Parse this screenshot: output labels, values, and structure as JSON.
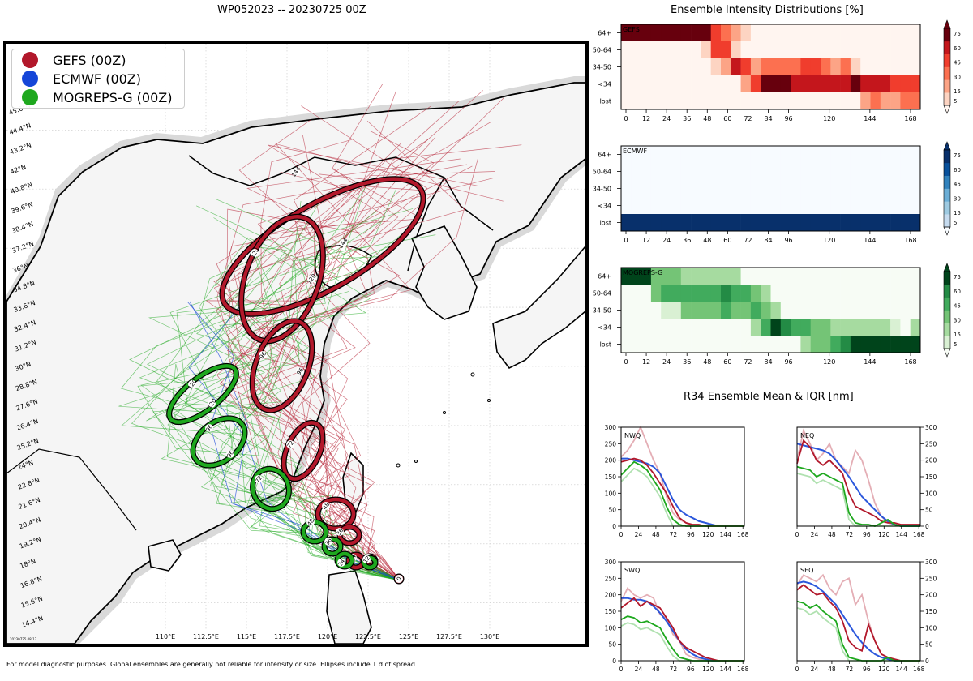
{
  "map": {
    "title": "WP052023 -- 20230725 00Z",
    "legend": [
      {
        "label": "GEFS (00Z)",
        "color": "#b2182b"
      },
      {
        "label": "ECMWF (00Z)",
        "color": "#1546d8"
      },
      {
        "label": "MOGREPS-G (00Z)",
        "color": "#1ea81e"
      }
    ],
    "lat_labels": [
      "14.4°N",
      "15.6°N",
      "16.8°N",
      "18°N",
      "19.2°N",
      "20.4°N",
      "21.6°N",
      "22.8°N",
      "24°N",
      "25.2°N",
      "26.4°N",
      "27.6°N",
      "28.8°N",
      "30°N",
      "31.2°N",
      "32.4°N",
      "33.6°N",
      "34.8°N",
      "36°N",
      "37.2°N",
      "38.4°N",
      "39.6°N",
      "40.8°N",
      "42°N",
      "43.2°N",
      "44.4°N",
      "45.6°N"
    ],
    "lon_labels": [
      "110°E",
      "112.5°E",
      "115°E",
      "117.5°E",
      "120°E",
      "122.5°E",
      "125°E",
      "127.5°E",
      "130°E"
    ],
    "stamp": "20230725 08:13",
    "ellipse_labels": {
      "gefs": [
        "144",
        "144",
        "120",
        "120",
        "96",
        "96",
        "72",
        "48",
        "36",
        "24",
        "12",
        "0"
      ],
      "mogreps": [
        "120",
        "120",
        "96",
        "96",
        "72",
        "48",
        "36",
        "24",
        "12"
      ]
    }
  },
  "footer": "For model diagnostic purposes. Global ensembles are generally not reliable for intensity or size. Ellipses include 1 σ of spread.",
  "intensity": {
    "title": "Ensemble Intensity Distributions [%]",
    "row_labels": [
      "64+",
      "50-64",
      "34-50",
      "<34",
      "lost"
    ],
    "x_ticks": [
      "0",
      "12",
      "24",
      "36",
      "48",
      "60",
      "72",
      "84",
      "96",
      "120",
      "144",
      "168"
    ],
    "x_tick_values": [
      0,
      12,
      24,
      36,
      48,
      60,
      72,
      84,
      96,
      120,
      144,
      168
    ],
    "cbar_ticks": [
      "5",
      "15",
      "30",
      "45",
      "60",
      "75"
    ],
    "cbar_tick_values": [
      5,
      15,
      30,
      45,
      60,
      75
    ],
    "panels": [
      {
        "name": "GEFS",
        "palette": [
          "#fff5f0",
          "#fdd4c2",
          "#fca486",
          "#fc7050",
          "#f03d2d",
          "#c4161c",
          "#67000d"
        ],
        "rows": [
          [
            75,
            75,
            75,
            75,
            75,
            75,
            75,
            75,
            75,
            45,
            30,
            15,
            5,
            0,
            0,
            0,
            0,
            0,
            0,
            0,
            0,
            0,
            0,
            0,
            0,
            0,
            0,
            0,
            0,
            0
          ],
          [
            0,
            0,
            0,
            0,
            0,
            0,
            0,
            0,
            5,
            45,
            45,
            5,
            0,
            0,
            0,
            0,
            0,
            0,
            0,
            0,
            0,
            0,
            0,
            0,
            0,
            0,
            0,
            0,
            0,
            0
          ],
          [
            0,
            0,
            0,
            0,
            0,
            0,
            0,
            0,
            0,
            5,
            15,
            60,
            45,
            15,
            30,
            30,
            30,
            30,
            45,
            45,
            30,
            15,
            30,
            5,
            0,
            0,
            0,
            0,
            0,
            0
          ],
          [
            0,
            0,
            0,
            0,
            0,
            0,
            0,
            0,
            0,
            0,
            0,
            0,
            15,
            45,
            75,
            75,
            75,
            60,
            60,
            60,
            60,
            60,
            60,
            75,
            60,
            60,
            60,
            45,
            45,
            45
          ],
          [
            0,
            0,
            0,
            0,
            0,
            0,
            0,
            0,
            0,
            0,
            0,
            0,
            0,
            0,
            0,
            0,
            0,
            0,
            0,
            0,
            0,
            0,
            0,
            0,
            15,
            30,
            15,
            15,
            30,
            30
          ]
        ]
      },
      {
        "name": "ECMWF",
        "palette": [
          "#f7fbff",
          "#c6dbef",
          "#9ecae1",
          "#6baed6",
          "#3182bd",
          "#08519c",
          "#08306b"
        ],
        "rows": [
          [
            0,
            0,
            0,
            0,
            0,
            0,
            0,
            0,
            0,
            0,
            0,
            0,
            0,
            0,
            0,
            0,
            0,
            0,
            0,
            0,
            0,
            0,
            0,
            0,
            0,
            0,
            0,
            0,
            0,
            0
          ],
          [
            0,
            0,
            0,
            0,
            0,
            0,
            0,
            0,
            0,
            0,
            0,
            0,
            0,
            0,
            0,
            0,
            0,
            0,
            0,
            0,
            0,
            0,
            0,
            0,
            0,
            0,
            0,
            0,
            0,
            0
          ],
          [
            0,
            0,
            0,
            0,
            0,
            0,
            0,
            0,
            0,
            0,
            0,
            0,
            0,
            0,
            0,
            0,
            0,
            0,
            0,
            0,
            0,
            0,
            0,
            0,
            0,
            0,
            0,
            0,
            0,
            0
          ],
          [
            0,
            0,
            0,
            0,
            0,
            0,
            0,
            0,
            0,
            0,
            0,
            0,
            0,
            0,
            0,
            0,
            0,
            0,
            0,
            0,
            0,
            0,
            0,
            0,
            0,
            0,
            0,
            0,
            0,
            0
          ],
          [
            100,
            100,
            100,
            100,
            100,
            100,
            100,
            100,
            100,
            100,
            100,
            100,
            100,
            100,
            100,
            100,
            100,
            100,
            100,
            100,
            100,
            100,
            100,
            100,
            100,
            100,
            100,
            100,
            100,
            100
          ]
        ]
      },
      {
        "name": "MOGREPS-G",
        "palette": [
          "#f7fcf5",
          "#d9f0d3",
          "#a6dba0",
          "#74c476",
          "#41ab5d",
          "#238b45",
          "#00441b"
        ],
        "rows": [
          [
            75,
            75,
            75,
            30,
            30,
            30,
            15,
            15,
            15,
            15,
            15,
            15,
            0,
            0,
            0,
            0,
            0,
            0,
            0,
            0,
            0,
            0,
            0,
            0,
            0,
            0,
            0,
            0,
            0,
            0
          ],
          [
            0,
            0,
            0,
            30,
            45,
            45,
            45,
            45,
            45,
            45,
            60,
            45,
            45,
            30,
            15,
            0,
            0,
            0,
            0,
            0,
            0,
            0,
            0,
            0,
            0,
            0,
            0,
            0,
            0,
            0
          ],
          [
            0,
            0,
            0,
            0,
            5,
            5,
            30,
            30,
            30,
            30,
            45,
            30,
            30,
            45,
            30,
            15,
            0,
            0,
            0,
            0,
            0,
            0,
            0,
            0,
            0,
            0,
            0,
            0,
            0,
            0
          ],
          [
            0,
            0,
            0,
            0,
            0,
            0,
            0,
            0,
            0,
            0,
            0,
            0,
            0,
            15,
            45,
            75,
            60,
            45,
            45,
            30,
            30,
            15,
            15,
            15,
            15,
            15,
            15,
            5,
            0,
            15
          ],
          [
            0,
            0,
            0,
            0,
            0,
            0,
            0,
            0,
            0,
            0,
            0,
            0,
            0,
            0,
            0,
            0,
            0,
            0,
            15,
            30,
            30,
            45,
            60,
            75,
            75,
            75,
            75,
            75,
            75,
            75
          ]
        ]
      }
    ]
  },
  "r34": {
    "title": "R34 Ensemble Mean & IQR [nm]",
    "x_ticks": [
      "0",
      "24",
      "48",
      "72",
      "96",
      "120",
      "144",
      "168"
    ],
    "y_ticks": [
      "0",
      "50",
      "100",
      "150",
      "200",
      "250",
      "300"
    ],
    "x_tick_values": [
      0,
      24,
      48,
      72,
      96,
      120,
      144,
      168
    ],
    "y_tick_values": [
      0,
      50,
      100,
      150,
      200,
      250,
      300
    ],
    "quadrants": [
      {
        "label": "NWQ",
        "side": "left",
        "gefs_mean": [
          195,
          200,
          205,
          200,
          185,
          160,
          130,
          100,
          60,
          25,
          10,
          5,
          5,
          0,
          0,
          0,
          0,
          0,
          0,
          0
        ],
        "gefs_iqr": [
          210,
          230,
          260,
          300,
          250,
          200,
          160,
          90,
          40,
          20,
          10,
          0,
          0,
          0,
          0,
          0,
          0,
          0,
          0,
          0
        ],
        "mog_mean": [
          155,
          175,
          195,
          185,
          170,
          140,
          110,
          60,
          20,
          5,
          0,
          0,
          0,
          0,
          0,
          0,
          0,
          0,
          0,
          0
        ],
        "ecm_mean": [
          205,
          205,
          200,
          195,
          190,
          180,
          160,
          120,
          80,
          50,
          35,
          25,
          15,
          10,
          5,
          0,
          0,
          0,
          0,
          0
        ]
      },
      {
        "label": "NEQ",
        "side": "right",
        "gefs_mean": [
          190,
          260,
          240,
          200,
          185,
          200,
          180,
          160,
          100,
          60,
          50,
          40,
          30,
          15,
          10,
          10,
          5,
          5,
          5,
          5
        ],
        "gefs_iqr": [
          200,
          290,
          250,
          200,
          220,
          250,
          200,
          180,
          160,
          230,
          200,
          140,
          70,
          30,
          10,
          5,
          0,
          0,
          0,
          0
        ],
        "mog_mean": [
          180,
          175,
          170,
          150,
          160,
          150,
          140,
          130,
          40,
          10,
          5,
          5,
          0,
          10,
          20,
          5,
          0,
          0,
          0,
          0
        ],
        "ecm_mean": [
          250,
          245,
          240,
          235,
          230,
          220,
          200,
          175,
          150,
          120,
          90,
          70,
          50,
          30,
          15,
          5,
          0,
          0,
          0,
          0
        ]
      },
      {
        "label": "SWQ",
        "side": "left",
        "gefs_mean": [
          160,
          175,
          190,
          165,
          180,
          170,
          160,
          130,
          100,
          60,
          40,
          30,
          20,
          10,
          5,
          0,
          0,
          0,
          0,
          0
        ],
        "gefs_iqr": [
          180,
          220,
          200,
          190,
          200,
          190,
          140,
          130,
          80,
          60,
          20,
          10,
          5,
          0,
          0,
          0,
          0,
          0,
          0,
          0
        ],
        "mog_mean": [
          125,
          135,
          130,
          115,
          120,
          110,
          100,
          65,
          35,
          10,
          5,
          0,
          0,
          0,
          0,
          0,
          0,
          0,
          0,
          0
        ],
        "ecm_mean": [
          190,
          190,
          185,
          185,
          180,
          165,
          145,
          120,
          90,
          60,
          35,
          20,
          10,
          5,
          0,
          0,
          0,
          0,
          0,
          0
        ]
      },
      {
        "label": "SEQ",
        "side": "right",
        "gefs_mean": [
          215,
          230,
          215,
          200,
          205,
          180,
          160,
          120,
          60,
          40,
          30,
          110,
          60,
          20,
          10,
          5,
          0,
          0,
          0,
          0
        ],
        "gefs_iqr": [
          230,
          260,
          250,
          240,
          260,
          220,
          200,
          240,
          250,
          170,
          200,
          120,
          60,
          20,
          10,
          0,
          0,
          0,
          0,
          0
        ],
        "mog_mean": [
          180,
          175,
          160,
          170,
          150,
          135,
          120,
          50,
          10,
          5,
          0,
          0,
          0,
          0,
          10,
          0,
          0,
          0,
          0,
          0
        ],
        "ecm_mean": [
          235,
          240,
          235,
          225,
          210,
          190,
          170,
          140,
          110,
          80,
          55,
          35,
          20,
          10,
          5,
          0,
          0,
          0,
          0,
          0
        ]
      }
    ]
  }
}
